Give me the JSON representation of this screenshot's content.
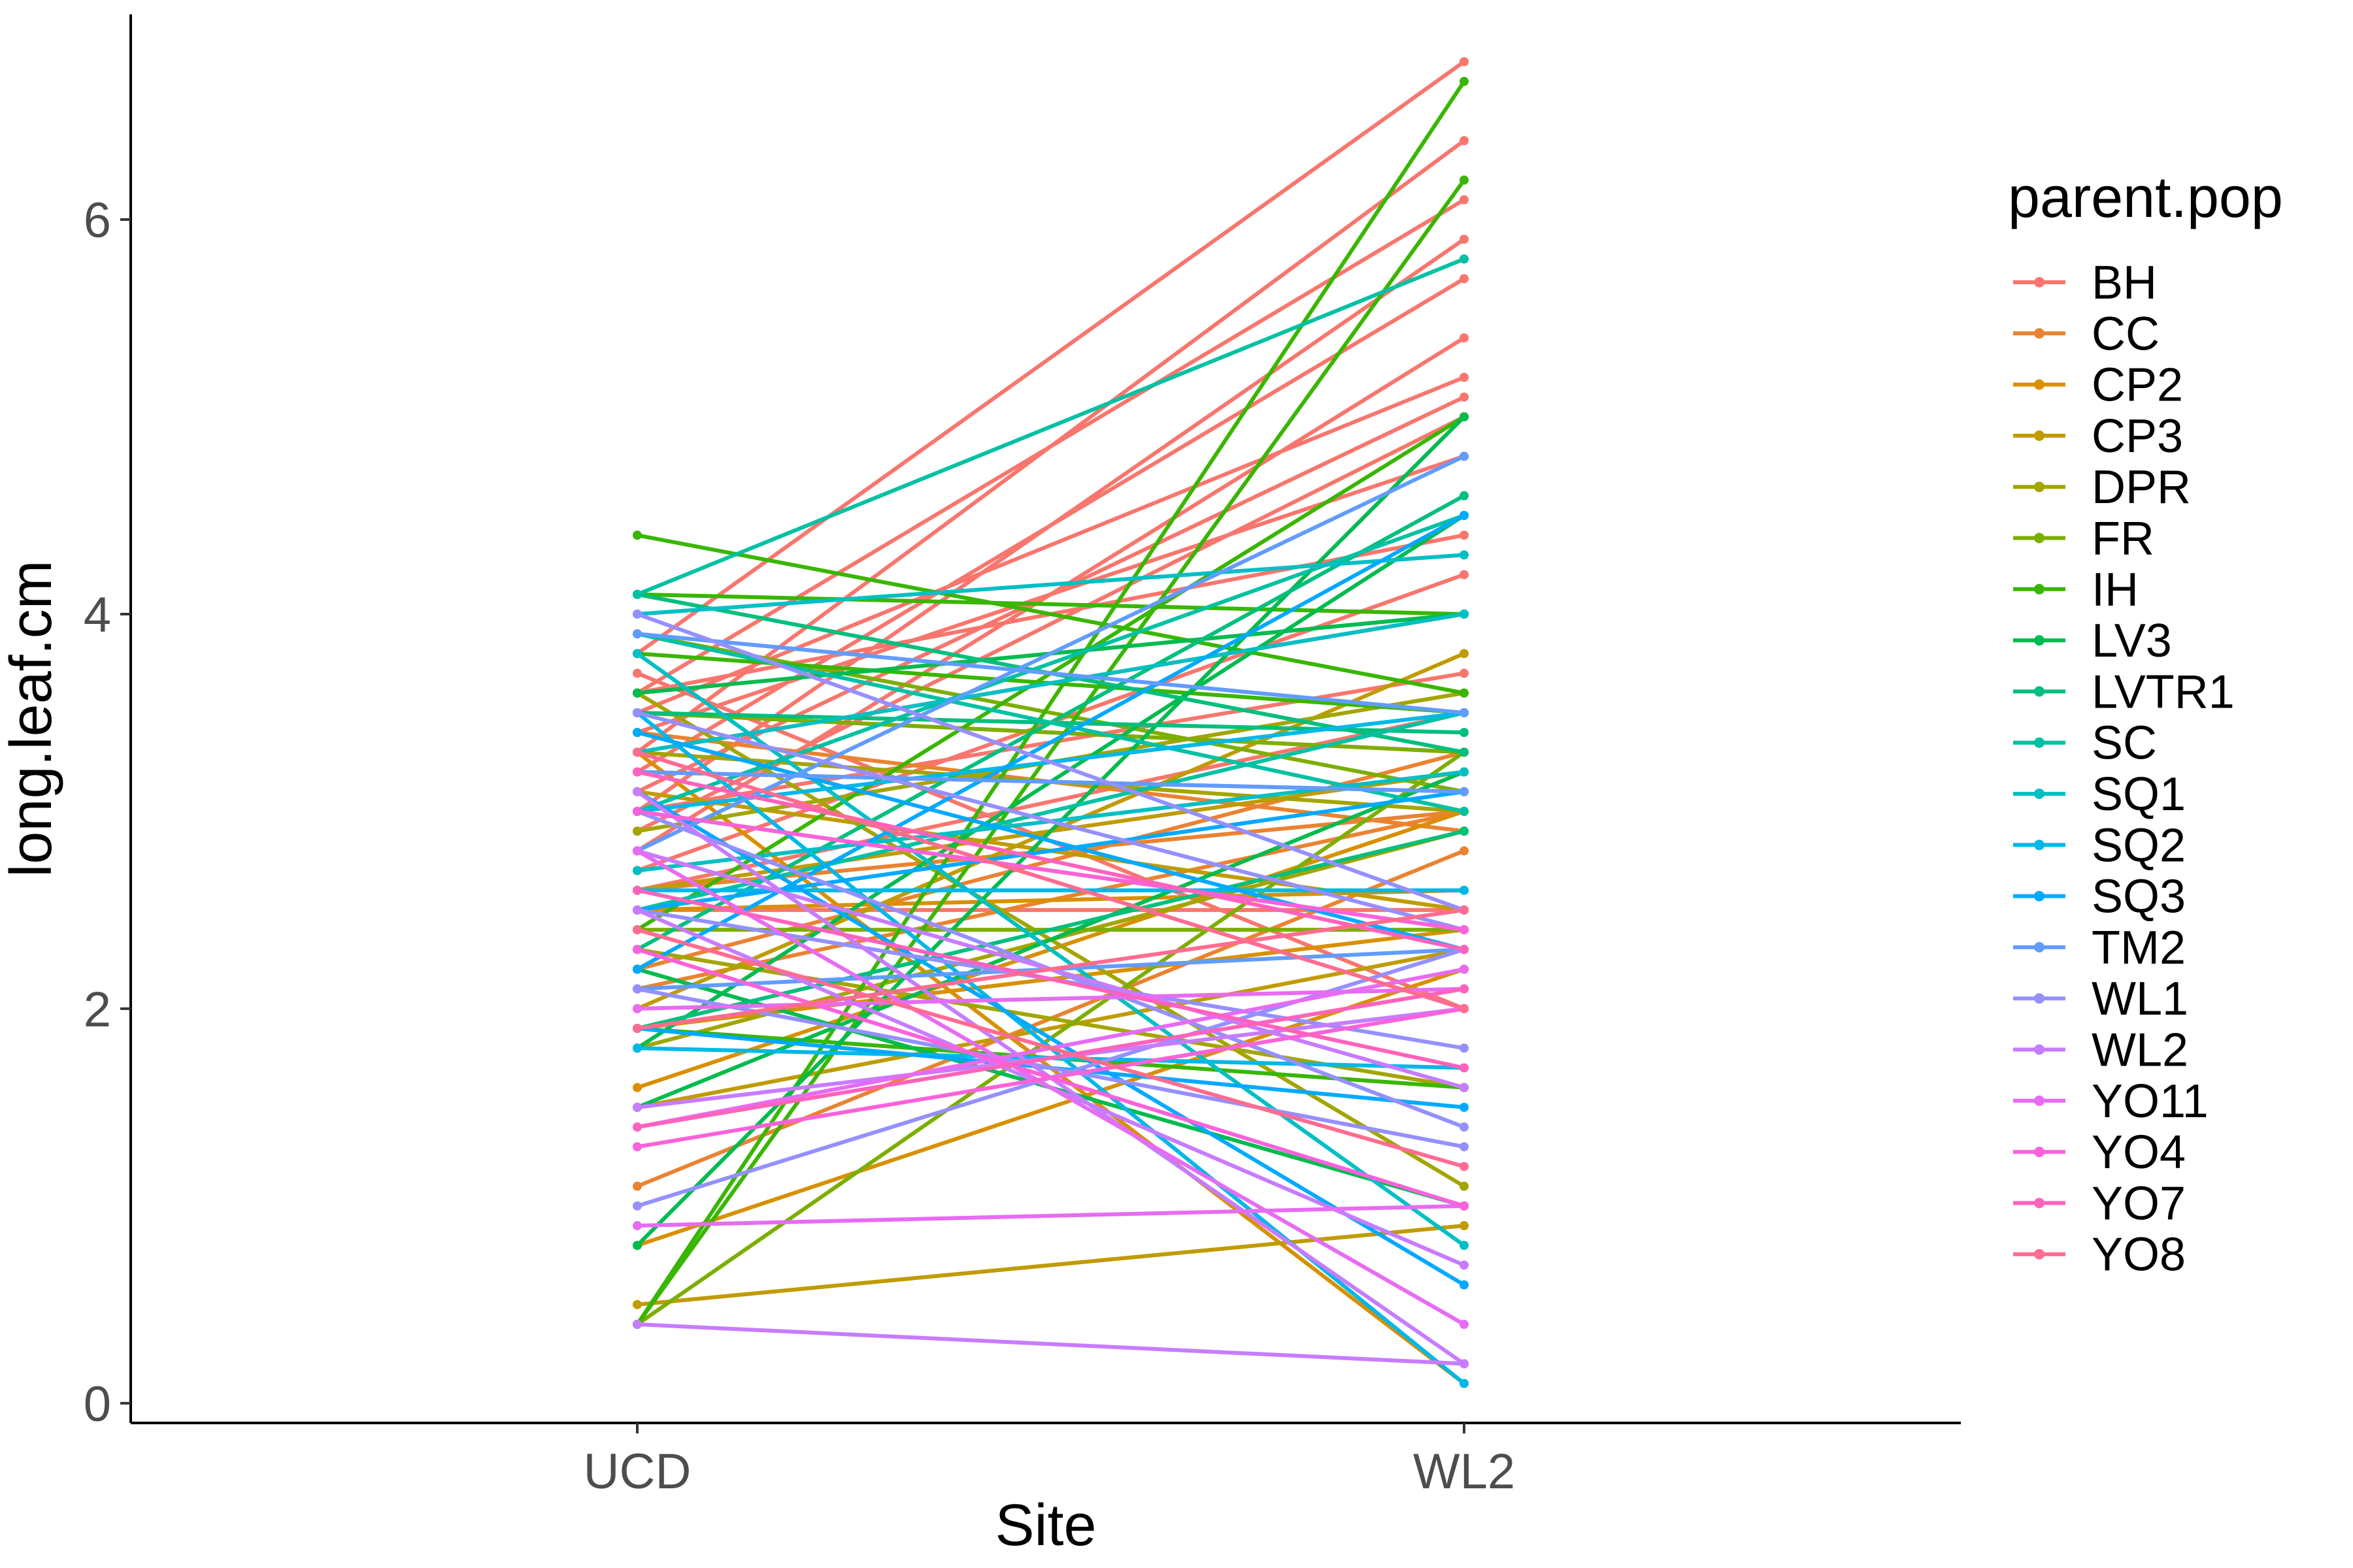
{
  "chart_data": {
    "type": "line",
    "title": "",
    "xlabel": "Site",
    "ylabel": "long.leaf.cm",
    "categories": [
      "UCD",
      "WL2"
    ],
    "ylim": [
      -0.1,
      7.04
    ],
    "yticks": [
      "0",
      "2",
      "4",
      "6"
    ],
    "grid": false,
    "legend": {
      "title": "parent.pop",
      "position": "right"
    },
    "series": [
      {
        "name": "BH",
        "color": "#F8766D",
        "lines": [
          [
            3.8,
            6.8
          ],
          [
            3.3,
            6.4
          ],
          [
            3.6,
            6.1
          ],
          [
            3.0,
            5.9
          ],
          [
            3.2,
            5.7
          ],
          [
            2.8,
            5.4
          ],
          [
            3.5,
            5.2
          ],
          [
            3.1,
            5.1
          ],
          [
            2.9,
            5.0
          ],
          [
            3.4,
            4.8
          ],
          [
            3.6,
            4.4
          ],
          [
            2.7,
            4.2
          ],
          [
            3.3,
            4.0
          ],
          [
            3.0,
            3.7
          ],
          [
            2.6,
            3.5
          ],
          [
            3.5,
            3.3
          ],
          [
            3.2,
            3.1
          ],
          [
            2.5,
            2.5
          ],
          [
            3.7,
            2.0
          ]
        ]
      },
      {
        "name": "CC",
        "color": "#EA8331",
        "lines": [
          [
            2.2,
            3.3
          ],
          [
            2.6,
            3.0
          ],
          [
            1.1,
            2.8
          ],
          [
            3.0,
            2.4
          ],
          [
            2.1,
            3.0
          ],
          [
            3.4,
            2.9
          ]
        ]
      },
      {
        "name": "CP2",
        "color": "#D89000",
        "lines": [
          [
            1.6,
            3.0
          ],
          [
            2.5,
            2.6
          ],
          [
            0.8,
            2.2
          ],
          [
            3.3,
            0.1
          ],
          [
            1.9,
            2.4
          ]
        ]
      },
      {
        "name": "CP3",
        "color": "#C09B00",
        "lines": [
          [
            0.5,
            0.9
          ],
          [
            2.0,
            3.8
          ],
          [
            2.6,
            3.2
          ],
          [
            1.5,
            2.3
          ],
          [
            3.1,
            2.5
          ]
        ]
      },
      {
        "name": "DPR",
        "color": "#A3A500",
        "lines": [
          [
            2.9,
            3.6
          ],
          [
            3.3,
            3.0
          ],
          [
            2.3,
            1.6
          ],
          [
            3.6,
            1.1
          ],
          [
            1.8,
            2.9
          ]
        ]
      },
      {
        "name": "FR",
        "color": "#7CAE00",
        "lines": [
          [
            3.5,
            3.3
          ],
          [
            2.4,
            2.4
          ],
          [
            0.4,
            3.3
          ],
          [
            3.9,
            3.1
          ]
        ]
      },
      {
        "name": "IH",
        "color": "#39B600",
        "lines": [
          [
            4.4,
            3.6
          ],
          [
            0.4,
            6.7
          ],
          [
            0.4,
            6.2
          ],
          [
            3.8,
            3.5
          ],
          [
            2.4,
            5.0
          ],
          [
            1.9,
            1.6
          ],
          [
            4.1,
            4.0
          ]
        ]
      },
      {
        "name": "LV3",
        "color": "#00BB4E",
        "lines": [
          [
            0.8,
            5.0
          ],
          [
            1.8,
            4.5
          ],
          [
            3.6,
            4.0
          ],
          [
            1.5,
            3.2
          ],
          [
            2.2,
            1.0
          ]
        ]
      },
      {
        "name": "LVTR1",
        "color": "#00BF7D",
        "lines": [
          [
            3.5,
            3.4
          ],
          [
            1.9,
            2.9
          ],
          [
            4.1,
            3.3
          ],
          [
            2.3,
            4.6
          ]
        ]
      },
      {
        "name": "SC",
        "color": "#00C1A3",
        "lines": [
          [
            4.1,
            5.8
          ],
          [
            3.0,
            4.5
          ],
          [
            2.5,
            3.5
          ],
          [
            3.9,
            3.0
          ]
        ]
      },
      {
        "name": "SQ1",
        "color": "#00BFC4",
        "lines": [
          [
            4.0,
            4.3
          ],
          [
            3.3,
            4.0
          ],
          [
            2.7,
            3.2
          ],
          [
            3.8,
            0.8
          ]
        ]
      },
      {
        "name": "SQ2",
        "color": "#00B8E7",
        "lines": [
          [
            1.8,
            1.7
          ],
          [
            3.0,
            3.5
          ],
          [
            2.6,
            2.6
          ],
          [
            3.5,
            0.1
          ]
        ]
      },
      {
        "name": "SQ3",
        "color": "#00A9FF",
        "lines": [
          [
            2.2,
            4.5
          ],
          [
            2.5,
            3.1
          ],
          [
            3.1,
            0.6
          ],
          [
            1.9,
            1.5
          ],
          [
            3.4,
            2.3
          ]
        ]
      },
      {
        "name": "TM2",
        "color": "#619CFF",
        "lines": [
          [
            3.9,
            3.5
          ],
          [
            2.8,
            4.8
          ],
          [
            3.2,
            3.1
          ],
          [
            2.1,
            2.3
          ]
        ]
      },
      {
        "name": "WL1",
        "color": "#9590FF",
        "lines": [
          [
            4.0,
            2.5
          ],
          [
            3.5,
            2.4
          ],
          [
            3.0,
            1.4
          ],
          [
            2.5,
            1.8
          ],
          [
            1.0,
            2.3
          ],
          [
            2.1,
            1.3
          ]
        ]
      },
      {
        "name": "WL2",
        "color": "#C77CFF",
        "lines": [
          [
            0.4,
            0.2
          ],
          [
            3.1,
            0.2
          ],
          [
            2.5,
            0.7
          ],
          [
            1.5,
            2.0
          ],
          [
            2.8,
            1.6
          ]
        ]
      },
      {
        "name": "YO11",
        "color": "#E76BF3",
        "lines": [
          [
            1.4,
            2.2
          ],
          [
            0.9,
            1.0
          ],
          [
            2.8,
            0.4
          ],
          [
            2.0,
            2.1
          ]
        ]
      },
      {
        "name": "YO4",
        "color": "#FA62DB",
        "lines": [
          [
            1.3,
            2.0
          ],
          [
            2.3,
            1.0
          ],
          [
            3.0,
            2.4
          ]
        ]
      },
      {
        "name": "YO7",
        "color": "#FF62BC",
        "lines": [
          [
            2.6,
            1.7
          ],
          [
            1.4,
            2.1
          ],
          [
            3.2,
            2.3
          ]
        ]
      },
      {
        "name": "YO8",
        "color": "#FF6C91",
        "lines": [
          [
            2.4,
            1.2
          ],
          [
            1.9,
            2.5
          ],
          [
            3.3,
            2.0
          ]
        ]
      }
    ]
  }
}
